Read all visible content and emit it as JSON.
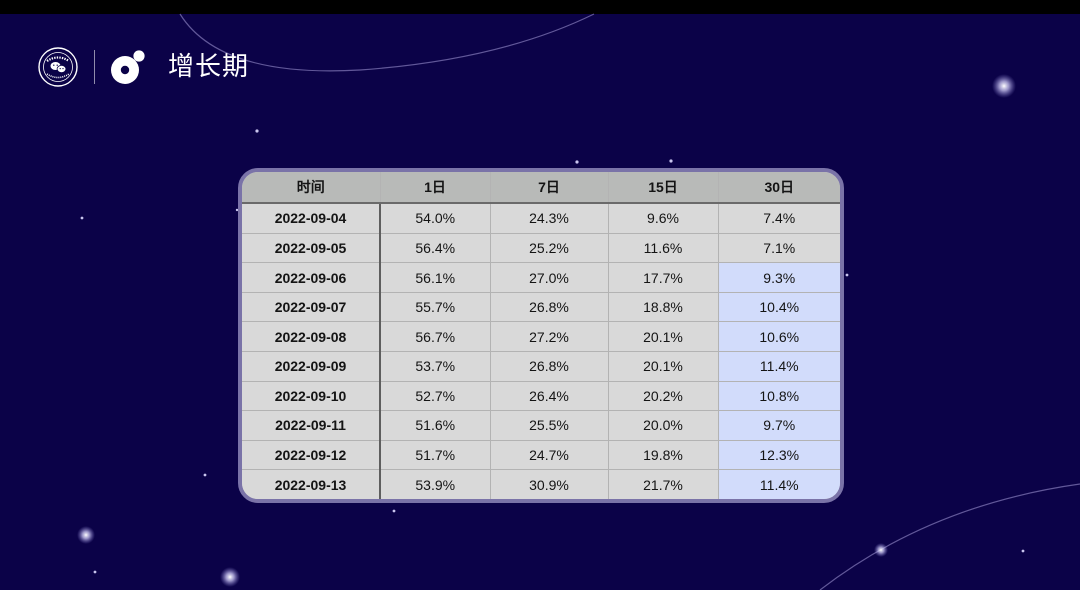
{
  "header": {
    "title": "增长期",
    "seal_text": "微信·公开课"
  },
  "colors": {
    "background": "#0b0248",
    "table_cell": "#d9d9d9",
    "table_header": "#b8bab8",
    "highlight_cell": "#d2dcfb",
    "card_border": "#7a73a8"
  },
  "table": {
    "columns": [
      "时间",
      "1日",
      "7日",
      "15日",
      "30日"
    ],
    "rows": [
      {
        "date": "2022-09-04",
        "d1": "54.0%",
        "d7": "24.3%",
        "d15": "9.6%",
        "d30": "7.4%",
        "d30_highlight": false
      },
      {
        "date": "2022-09-05",
        "d1": "56.4%",
        "d7": "25.2%",
        "d15": "11.6%",
        "d30": "7.1%",
        "d30_highlight": false
      },
      {
        "date": "2022-09-06",
        "d1": "56.1%",
        "d7": "27.0%",
        "d15": "17.7%",
        "d30": "9.3%",
        "d30_highlight": true
      },
      {
        "date": "2022-09-07",
        "d1": "55.7%",
        "d7": "26.8%",
        "d15": "18.8%",
        "d30": "10.4%",
        "d30_highlight": true
      },
      {
        "date": "2022-09-08",
        "d1": "56.7%",
        "d7": "27.2%",
        "d15": "20.1%",
        "d30": "10.6%",
        "d30_highlight": true
      },
      {
        "date": "2022-09-09",
        "d1": "53.7%",
        "d7": "26.8%",
        "d15": "20.1%",
        "d30": "11.4%",
        "d30_highlight": true
      },
      {
        "date": "2022-09-10",
        "d1": "52.7%",
        "d7": "26.4%",
        "d15": "20.2%",
        "d30": "10.8%",
        "d30_highlight": true
      },
      {
        "date": "2022-09-11",
        "d1": "51.6%",
        "d7": "25.5%",
        "d15": "20.0%",
        "d30": "9.7%",
        "d30_highlight": true
      },
      {
        "date": "2022-09-12",
        "d1": "51.7%",
        "d7": "24.7%",
        "d15": "19.8%",
        "d30": "12.3%",
        "d30_highlight": true
      },
      {
        "date": "2022-09-13",
        "d1": "53.9%",
        "d7": "30.9%",
        "d15": "21.7%",
        "d30": "11.4%",
        "d30_highlight": true
      }
    ]
  }
}
